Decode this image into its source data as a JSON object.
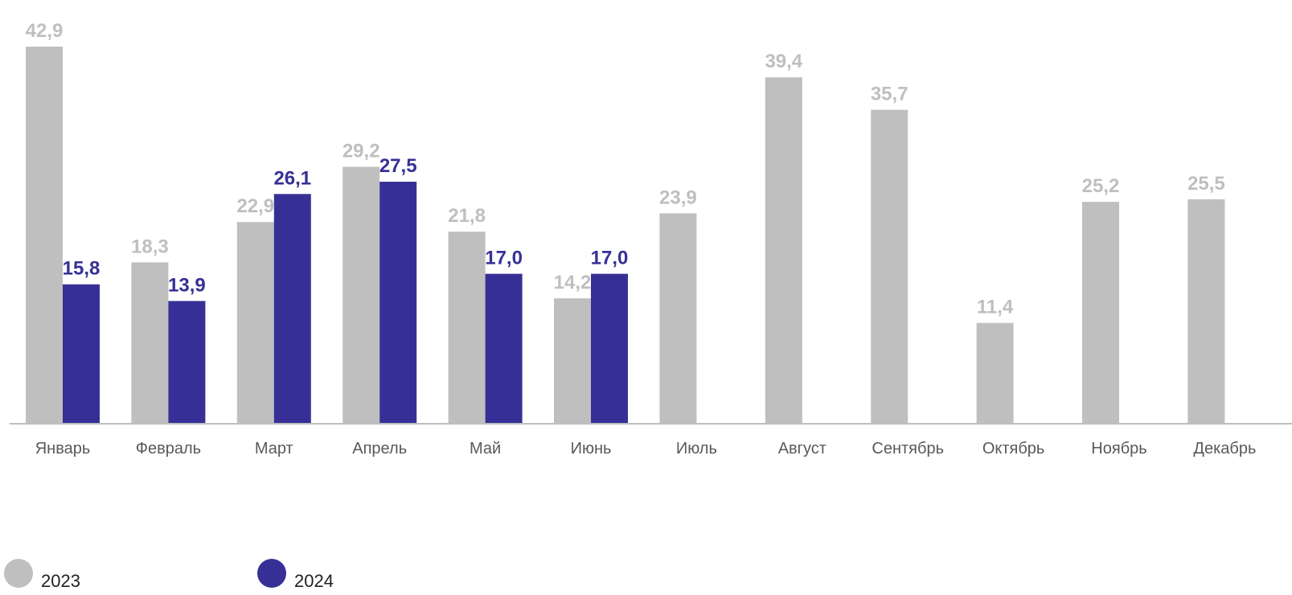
{
  "colors": {
    "2023": "#bfbfbf",
    "2024": "#363096",
    "axis": "#bfbfbf",
    "tick_text": "#595959"
  },
  "chart_data": {
    "type": "bar",
    "categories": [
      "Январь",
      "Февраль",
      "Март",
      "Апрель",
      "Май",
      "Июнь",
      "Июль",
      "Август",
      "Сентябрь",
      "Октябрь",
      "Ноябрь",
      "Декабрь"
    ],
    "series": [
      {
        "name": "2023",
        "values": [
          42.9,
          18.3,
          22.9,
          29.2,
          21.8,
          14.2,
          23.9,
          39.4,
          35.7,
          11.4,
          25.2,
          25.5
        ]
      },
      {
        "name": "2024",
        "values": [
          15.8,
          13.9,
          26.1,
          27.5,
          17.0,
          17.0,
          null,
          null,
          null,
          null,
          null,
          null
        ]
      }
    ],
    "value_labels": {
      "2023": [
        "42,9",
        "18,3",
        "22,9",
        "29,2",
        "21,8",
        "14,2",
        "23,9",
        "39,4",
        "35,7",
        "11,4",
        "25,2",
        "25,5"
      ],
      "2024": [
        "15,8",
        "13,9",
        "26,1",
        "27,5",
        "17,0",
        "17,0",
        "",
        "",
        "",
        "",
        "",
        ""
      ]
    },
    "ylim": [
      0,
      42.9
    ],
    "grid": false,
    "legend": "bottom-left",
    "xlabel": "",
    "ylabel": ""
  }
}
